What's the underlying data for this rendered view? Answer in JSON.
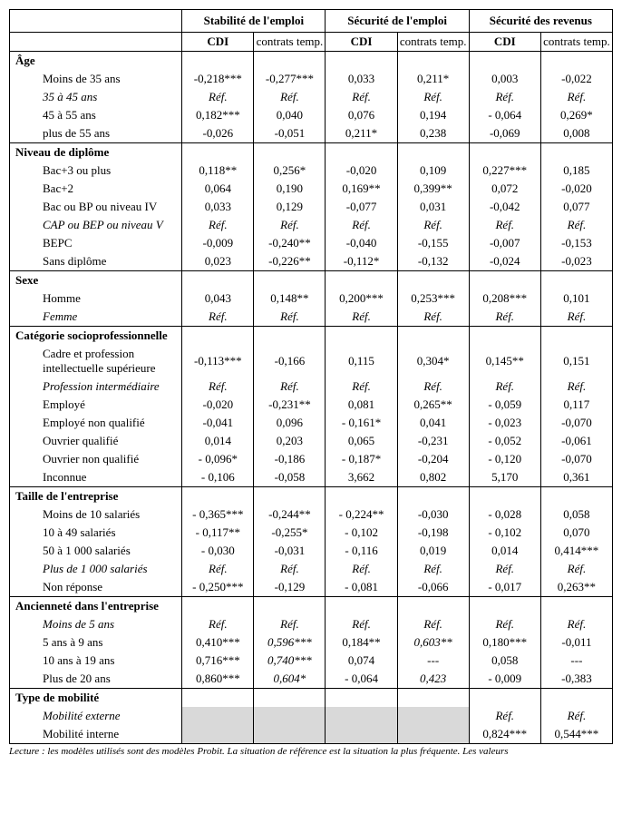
{
  "header_groups": [
    "Stabilité de l'emploi",
    "Sécurité de l'emploi",
    "Sécurité des revenus"
  ],
  "sub_cdi": "CDI",
  "sub_temp": "contrats temp.",
  "sections": {
    "age": {
      "title": "Âge",
      "rows": [
        {
          "label": "Moins de 35 ans",
          "vals": [
            "-0,218***",
            "-0,277***",
            "0,033",
            "0,211*",
            "0,003",
            "-0,022"
          ]
        },
        {
          "label": "35 à 45 ans",
          "ital": true,
          "vals": [
            "Réf.",
            "Réf.",
            "Réf.",
            "Réf.",
            "Réf.",
            "Réf."
          ]
        },
        {
          "label": "45 à 55 ans",
          "vals": [
            "0,182***",
            "0,040",
            "0,076",
            "0,194",
            "- 0,064",
            "0,269*"
          ]
        },
        {
          "label": "plus de 55 ans",
          "vals": [
            "-0,026",
            "-0,051",
            "0,211*",
            "0,238",
            "-0,069",
            "0,008"
          ]
        }
      ]
    },
    "diplome": {
      "title": "Niveau de diplôme",
      "rows": [
        {
          "label": "Bac+3 ou plus",
          "vals": [
            "0,118**",
            "0,256*",
            "-0,020",
            "0,109",
            "0,227***",
            "0,185"
          ]
        },
        {
          "label": "Bac+2",
          "vals": [
            "0,064",
            "0,190",
            "0,169**",
            "0,399**",
            "0,072",
            "-0,020"
          ]
        },
        {
          "label": "Bac ou BP ou niveau IV",
          "vals": [
            "0,033",
            "0,129",
            "-0,077",
            "0,031",
            "-0,042",
            "0,077"
          ]
        },
        {
          "label": "CAP ou BEP ou niveau V",
          "ital": true,
          "vals": [
            "Réf.",
            "Réf.",
            "Réf.",
            "Réf.",
            "Réf.",
            "Réf."
          ]
        },
        {
          "label": "BEPC",
          "vals": [
            "-0,009",
            "-0,240**",
            "-0,040",
            "-0,155",
            "-0,007",
            "-0,153"
          ]
        },
        {
          "label": "Sans diplôme",
          "vals": [
            "0,023",
            "-0,226**",
            "-0,112*",
            "-0,132",
            "-0,024",
            "-0,023"
          ]
        }
      ]
    },
    "sexe": {
      "title": "Sexe",
      "rows": [
        {
          "label": "Homme",
          "vals": [
            "0,043",
            "0,148**",
            "0,200***",
            "0,253***",
            "0,208***",
            "0,101"
          ]
        },
        {
          "label": "Femme",
          "ital": true,
          "vals": [
            "Réf.",
            "Réf.",
            "Réf.",
            "Réf.",
            "Réf.",
            "Réf."
          ]
        }
      ]
    },
    "csp": {
      "title": "Catégorie socioprofessionnelle",
      "rows": [
        {
          "label": "Cadre et profession intellectuelle supérieure",
          "vals": [
            "-0,113***",
            "-0,166",
            "0,115",
            "0,304*",
            "0,145**",
            "0,151"
          ]
        },
        {
          "label": "Profession intermédiaire",
          "ital": true,
          "vals": [
            "Réf.",
            "Réf.",
            "Réf.",
            "Réf.",
            "Réf.",
            "Réf."
          ]
        },
        {
          "label": "Employé",
          "vals": [
            "-0,020",
            "-0,231**",
            "0,081",
            "0,265**",
            "- 0,059",
            "0,117"
          ]
        },
        {
          "label": "Employé non qualifié",
          "vals": [
            "-0,041",
            "0,096",
            "- 0,161*",
            "0,041",
            "- 0,023",
            "-0,070"
          ]
        },
        {
          "label": "Ouvrier qualifié",
          "vals": [
            "0,014",
            "0,203",
            "0,065",
            "-0,231",
            "- 0,052",
            "-0,061"
          ]
        },
        {
          "label": "Ouvrier non qualifié",
          "vals": [
            "- 0,096*",
            "-0,186",
            "- 0,187*",
            "-0,204",
            "- 0,120",
            "-0,070"
          ]
        },
        {
          "label": "Inconnue",
          "vals": [
            "- 0,106",
            "-0,058",
            "3,662",
            "0,802",
            "5,170",
            "0,361"
          ]
        }
      ]
    },
    "taille": {
      "title": "Taille de l'entreprise",
      "rows": [
        {
          "label": "Moins de 10 salariés",
          "vals": [
            "- 0,365***",
            "-0,244**",
            "- 0,224**",
            "-0,030",
            "- 0,028",
            "0,058"
          ]
        },
        {
          "label": "10 à 49 salariés",
          "vals": [
            "- 0,117**",
            "-0,255*",
            "- 0,102",
            "-0,198",
            "- 0,102",
            "0,070"
          ]
        },
        {
          "label": "50 à 1 000 salariés",
          "vals": [
            "- 0,030",
            "-0,031",
            "- 0,116",
            "0,019",
            "0,014",
            "0,414***"
          ]
        },
        {
          "label": "Plus de 1 000 salariés",
          "ital": true,
          "vals": [
            "Réf.",
            "Réf.",
            "Réf.",
            "Réf.",
            "Réf.",
            "Réf."
          ]
        },
        {
          "label": "Non réponse",
          "vals": [
            "- 0,250***",
            "-0,129",
            "- 0,081",
            "-0,066",
            "- 0,017",
            "0,263**"
          ]
        }
      ]
    },
    "anciennete": {
      "title": "Ancienneté dans l'entreprise",
      "rows": [
        {
          "label": "Moins de 5 ans",
          "ital": true,
          "vals": [
            "Réf.",
            "Réf.",
            "Réf.",
            "Réf.",
            "Réf.",
            "Réf."
          ]
        },
        {
          "label": "5 ans à 9 ans",
          "vals": [
            "0,410***",
            "0,596***",
            "0,184**",
            "0,603**",
            "0,180***",
            "-0,011"
          ],
          "ital_cols": [
            1,
            3
          ]
        },
        {
          "label": "10 ans à 19 ans",
          "vals": [
            "0,716***",
            "0,740***",
            "0,074",
            "---",
            "0,058",
            "---"
          ],
          "ital_cols": [
            1
          ]
        },
        {
          "label": "Plus de 20 ans",
          "vals": [
            "0,860***",
            "0,604*",
            "- 0,064",
            "0,423",
            "- 0,009",
            "-0,383"
          ],
          "ital_cols": [
            1,
            3
          ]
        }
      ]
    },
    "mobilite": {
      "title": "Type de mobilité",
      "rows": [
        {
          "label": "Mobilité externe",
          "ital": true,
          "shaded4": true,
          "vals": [
            "",
            "",
            "",
            "",
            "Réf.",
            "Réf."
          ],
          "ital_cols": [
            4,
            5
          ]
        },
        {
          "label": "Mobilité interne",
          "shaded4": true,
          "vals": [
            "",
            "",
            "",
            "",
            "0,824***",
            "0,544***"
          ]
        }
      ]
    }
  },
  "footer": "Lecture : les modèles utilisés sont des modèles Probit. La situation de référence est la situation la plus fréquente. Les valeurs"
}
